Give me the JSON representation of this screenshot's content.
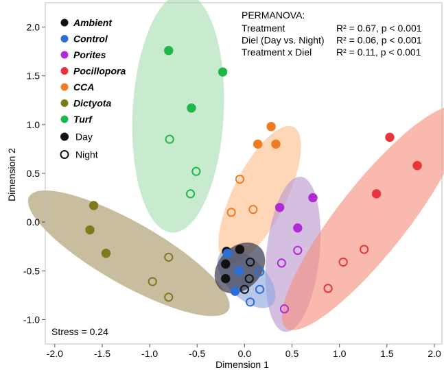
{
  "chart_data": {
    "type": "scatter",
    "xlabel": "Dimension 1",
    "ylabel": "Dimension 2",
    "xlim": [
      -2.1,
      2.08
    ],
    "ylim": [
      -1.25,
      2.25
    ],
    "x_ticks": [
      "-2.0",
      "-1.5",
      "-1.0",
      "-0.5",
      "0.0",
      "0.5",
      "1.0",
      "1.5",
      "2.0"
    ],
    "y_ticks": [
      "-1.0",
      "-0.5",
      "0.0",
      "0.5",
      "1.0",
      "1.5",
      "2.0"
    ],
    "grid": false,
    "legend": {
      "position": "top-left",
      "groups": [
        {
          "name": "Ambient",
          "color": "#111111"
        },
        {
          "name": "Control",
          "color": "#2b6fd6"
        },
        {
          "name": "Porites",
          "color": "#b22ad6"
        },
        {
          "name": "Pocillopora",
          "color": "#e8343a"
        },
        {
          "name": "CCA",
          "color": "#f47a1f"
        },
        {
          "name": "Dictyota",
          "color": "#7f7a1c"
        },
        {
          "name": "Turf",
          "color": "#1db847"
        }
      ],
      "markers": [
        {
          "name": "Day",
          "fill": "filled"
        },
        {
          "name": "Night",
          "fill": "open"
        }
      ]
    },
    "stats": {
      "title": "PERMANOVA:",
      "rows": [
        {
          "term": "Treatment",
          "value": "R² = 0.67, p < 0.001"
        },
        {
          "term": "Diel (Day vs. Night)",
          "value": "R² = 0.06, p < 0.001"
        },
        {
          "term": "Treatment x Diel",
          "value": "R² = 0.11, p < 0.001"
        }
      ]
    },
    "stress": "Stress = 0.24",
    "ellipses": [
      {
        "group": "Dictyota",
        "fill": "#a89466",
        "opacity": 0.62,
        "cx": -1.22,
        "cy": -0.32,
        "a": 1.2,
        "b": 0.32,
        "angle_deg": -29
      },
      {
        "group": "Turf",
        "fill": "#92d69f",
        "opacity": 0.5,
        "cx": -0.7,
        "cy": 1.12,
        "a": 1.23,
        "b": 0.48,
        "angle_deg": 87
      },
      {
        "group": "CCA",
        "fill": "#fbbf8c",
        "opacity": 0.62,
        "cx": 0.16,
        "cy": 0.28,
        "a": 0.78,
        "b": 0.28,
        "angle_deg": 63
      },
      {
        "group": "Porites",
        "fill": "#ba97cf",
        "opacity": 0.62,
        "cx": 0.51,
        "cy": -0.33,
        "a": 0.8,
        "b": 0.28,
        "angle_deg": 84
      },
      {
        "group": "Pocillopora",
        "fill": "#f68e7c",
        "opacity": 0.62,
        "cx": 1.35,
        "cy": 0.04,
        "a": 1.45,
        "b": 0.36,
        "angle_deg": 51
      },
      {
        "group": "Control",
        "fill": "#8ba6dc",
        "opacity": 0.62,
        "cx": 0.02,
        "cy": -0.58,
        "a": 0.38,
        "b": 0.2,
        "angle_deg": -45
      },
      {
        "group": "Ambient",
        "fill": "#3f3f55",
        "opacity": 0.72,
        "cx": -0.05,
        "cy": -0.47,
        "a": 0.3,
        "b": 0.22,
        "angle_deg": 45
      }
    ],
    "series": [
      {
        "name": "Ambient",
        "color": "#111111",
        "day": [
          [
            -0.2,
            -0.43
          ],
          [
            -0.2,
            -0.58
          ],
          [
            -0.19,
            -0.3
          ],
          [
            -0.05,
            -0.28
          ]
        ],
        "night": [
          [
            0.06,
            -0.41
          ],
          [
            0.05,
            -0.58
          ],
          [
            0.0,
            -0.69
          ]
        ]
      },
      {
        "name": "Control",
        "color": "#2b6fd6",
        "day": [
          [
            -0.18,
            -0.32
          ],
          [
            -0.06,
            -0.5
          ],
          [
            -0.1,
            -0.71
          ]
        ],
        "night": [
          [
            0.16,
            -0.51
          ],
          [
            0.16,
            -0.69
          ],
          [
            0.06,
            -0.82
          ]
        ]
      },
      {
        "name": "Porites",
        "color": "#b22ad6",
        "day": [
          [
            0.37,
            0.15
          ],
          [
            0.72,
            0.25
          ],
          [
            0.56,
            -0.06
          ]
        ],
        "night": [
          [
            0.39,
            -0.42
          ],
          [
            0.56,
            -0.29
          ],
          [
            0.42,
            -0.89
          ]
        ]
      },
      {
        "name": "Pocillopora",
        "color": "#e8343a",
        "day": [
          [
            1.53,
            0.87
          ],
          [
            1.82,
            0.58
          ],
          [
            1.39,
            0.29
          ]
        ],
        "night": [
          [
            1.26,
            -0.28
          ],
          [
            1.04,
            -0.41
          ],
          [
            0.88,
            -0.68
          ]
        ]
      },
      {
        "name": "CCA",
        "color": "#f47a1f",
        "day": [
          [
            0.28,
            0.98
          ],
          [
            0.14,
            0.8
          ],
          [
            0.33,
            0.8
          ]
        ],
        "night": [
          [
            -0.05,
            0.44
          ],
          [
            -0.14,
            0.1
          ],
          [
            0.09,
            0.13
          ]
        ]
      },
      {
        "name": "Dictyota",
        "color": "#7f7a1c",
        "day": [
          [
            -1.59,
            0.17
          ],
          [
            -1.63,
            -0.08
          ],
          [
            -1.46,
            -0.32
          ]
        ],
        "night": [
          [
            -0.8,
            -0.36
          ],
          [
            -0.97,
            -0.61
          ],
          [
            -0.8,
            -0.77
          ]
        ]
      },
      {
        "name": "Turf",
        "color": "#1db847",
        "day": [
          [
            -0.8,
            1.76
          ],
          [
            -0.23,
            1.54
          ],
          [
            -0.56,
            1.17
          ]
        ],
        "night": [
          [
            -0.79,
            0.85
          ],
          [
            -0.51,
            0.52
          ],
          [
            -0.57,
            0.29
          ]
        ]
      }
    ]
  }
}
